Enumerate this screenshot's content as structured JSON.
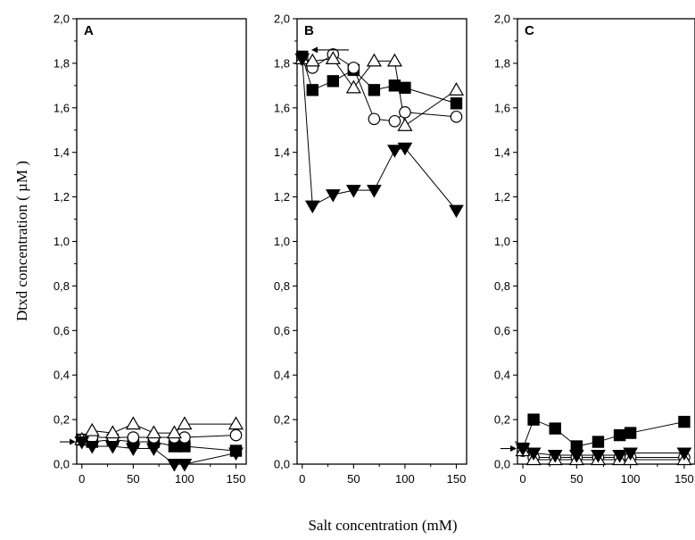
{
  "figure": {
    "ylabel": "Dtxd concentration ( µM )",
    "xlabel": "Salt concentration (mM)"
  },
  "chart_data": [
    {
      "type": "scatter",
      "panel_label": "A",
      "xlim": [
        -5,
        160
      ],
      "ylim": [
        0,
        2.0
      ],
      "x_ticks": [
        0,
        50,
        100,
        150
      ],
      "x_tick_labels": [
        "0",
        "50",
        "100",
        "150"
      ],
      "y_ticks": [
        0,
        0.2,
        0.4,
        0.6,
        0.8,
        1.0,
        1.2,
        1.4,
        1.6,
        1.8,
        2.0
      ],
      "y_tick_labels": [
        "0,0",
        "0,2",
        "0,4",
        "0,6",
        "0,8",
        "1,0",
        "1,2",
        "1,4",
        "1,6",
        "1,8",
        "2,0"
      ],
      "grid": false,
      "annotations": [
        {
          "type": "arrow",
          "direction": "right",
          "y": 0.1
        }
      ],
      "series": [
        {
          "marker": "filled-square",
          "x": [
            0,
            10,
            30,
            50,
            70,
            90,
            100,
            150
          ],
          "y": [
            0.11,
            0.1,
            0.11,
            0.1,
            0.1,
            0.08,
            0.08,
            0.06
          ]
        },
        {
          "marker": "open-circle",
          "x": [
            0,
            10,
            30,
            50,
            70,
            90,
            100,
            150
          ],
          "y": [
            0.11,
            0.12,
            0.12,
            0.12,
            0.12,
            0.12,
            0.12,
            0.13
          ]
        },
        {
          "marker": "open-triangle-up",
          "x": [
            0,
            10,
            30,
            50,
            70,
            90,
            100,
            150
          ],
          "y": [
            0.11,
            0.15,
            0.14,
            0.18,
            0.14,
            0.14,
            0.18,
            0.18
          ]
        },
        {
          "marker": "filled-triangle-down",
          "x": [
            0,
            10,
            30,
            50,
            70,
            90,
            100,
            150
          ],
          "y": [
            0.1,
            0.08,
            0.08,
            0.07,
            0.07,
            0.0,
            0.0,
            0.05
          ]
        }
      ]
    },
    {
      "type": "scatter",
      "panel_label": "B",
      "xlim": [
        -5,
        160
      ],
      "ylim": [
        0,
        2.0
      ],
      "x_ticks": [
        0,
        50,
        100,
        150
      ],
      "x_tick_labels": [
        "0",
        "50",
        "100",
        "150"
      ],
      "y_ticks": [
        0,
        0.2,
        0.4,
        0.6,
        0.8,
        1.0,
        1.2,
        1.4,
        1.6,
        1.8,
        2.0
      ],
      "y_tick_labels": [
        "0,0",
        "0,2",
        "0,4",
        "0,6",
        "0,8",
        "1,0",
        "1,2",
        "1,4",
        "1,6",
        "1,8",
        "2,0"
      ],
      "grid": false,
      "annotations": [
        {
          "type": "arrow",
          "direction": "left",
          "y": 1.86
        }
      ],
      "series": [
        {
          "marker": "filled-square",
          "x": [
            0,
            10,
            30,
            50,
            70,
            90,
            100,
            150
          ],
          "y": [
            1.83,
            1.68,
            1.72,
            1.77,
            1.68,
            1.7,
            1.69,
            1.62
          ]
        },
        {
          "marker": "open-circle",
          "x": [
            0,
            10,
            30,
            50,
            70,
            90,
            100,
            150
          ],
          "y": [
            1.82,
            1.78,
            1.84,
            1.78,
            1.55,
            1.54,
            1.58,
            1.56
          ]
        },
        {
          "marker": "open-triangle-up",
          "x": [
            0,
            10,
            30,
            50,
            70,
            90,
            100,
            150
          ],
          "y": [
            1.82,
            1.81,
            1.82,
            1.69,
            1.81,
            1.81,
            1.52,
            1.68
          ]
        },
        {
          "marker": "filled-triangle-down",
          "x": [
            0,
            10,
            30,
            50,
            70,
            90,
            100,
            150
          ],
          "y": [
            1.82,
            1.16,
            1.21,
            1.23,
            1.23,
            1.41,
            1.42,
            1.14
          ]
        }
      ]
    },
    {
      "type": "scatter",
      "panel_label": "C",
      "xlim": [
        -5,
        160
      ],
      "ylim": [
        0,
        2.0
      ],
      "x_ticks": [
        0,
        50,
        100,
        150
      ],
      "x_tick_labels": [
        "0",
        "50",
        "100",
        "150"
      ],
      "y_ticks": [
        0,
        0.2,
        0.4,
        0.6,
        0.8,
        1.0,
        1.2,
        1.4,
        1.6,
        1.8,
        2.0
      ],
      "y_tick_labels": [
        "0,0",
        "0,2",
        "0,4",
        "0,6",
        "0,8",
        "1,0",
        "1,2",
        "1,4",
        "1,6",
        "1,8",
        "2,0"
      ],
      "grid": false,
      "annotations": [
        {
          "type": "arrow",
          "direction": "right",
          "y": 0.07
        }
      ],
      "series": [
        {
          "marker": "filled-square",
          "x": [
            0,
            10,
            30,
            50,
            70,
            90,
            100,
            150
          ],
          "y": [
            0.07,
            0.2,
            0.16,
            0.08,
            0.1,
            0.13,
            0.14,
            0.19
          ]
        },
        {
          "marker": "open-circle",
          "x": [
            0,
            10,
            30,
            50,
            70,
            90,
            100,
            150
          ],
          "y": [
            0.06,
            0.03,
            0.03,
            0.03,
            0.03,
            0.03,
            0.03,
            0.03
          ]
        },
        {
          "marker": "open-triangle-up",
          "x": [
            0,
            10,
            30,
            50,
            70,
            90,
            100,
            150
          ],
          "y": [
            0.06,
            0.02,
            0.02,
            0.02,
            0.02,
            0.02,
            0.02,
            0.02
          ]
        },
        {
          "marker": "filled-triangle-down",
          "x": [
            0,
            10,
            30,
            50,
            70,
            90,
            100,
            150
          ],
          "y": [
            0.07,
            0.05,
            0.04,
            0.04,
            0.04,
            0.04,
            0.05,
            0.05
          ]
        }
      ]
    }
  ]
}
